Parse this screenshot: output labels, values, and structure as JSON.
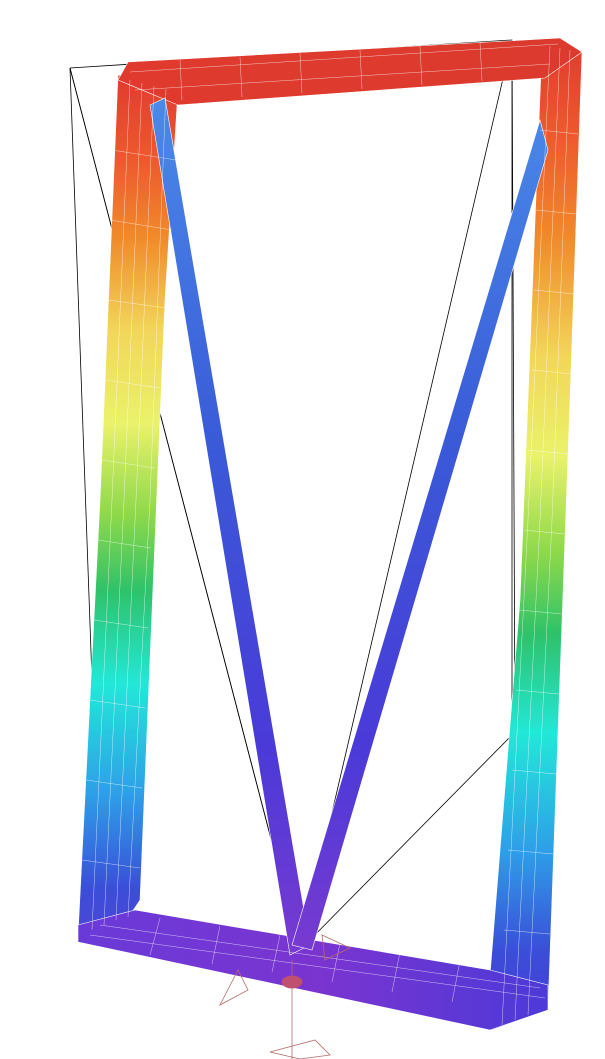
{
  "viewport": {
    "background_color": "#ffffff"
  },
  "model": {
    "contour_colors": [
      "#e03a2e",
      "#f08a2a",
      "#f2d65a",
      "#eaf26a",
      "#8cd84a",
      "#2ec26a",
      "#22e8d8",
      "#2e9ee8",
      "#3a4ed8",
      "#6a3ad8"
    ],
    "outline_color": "#000000",
    "mesh_line_color": "#ffffff",
    "support_color": "#b46a6a"
  }
}
